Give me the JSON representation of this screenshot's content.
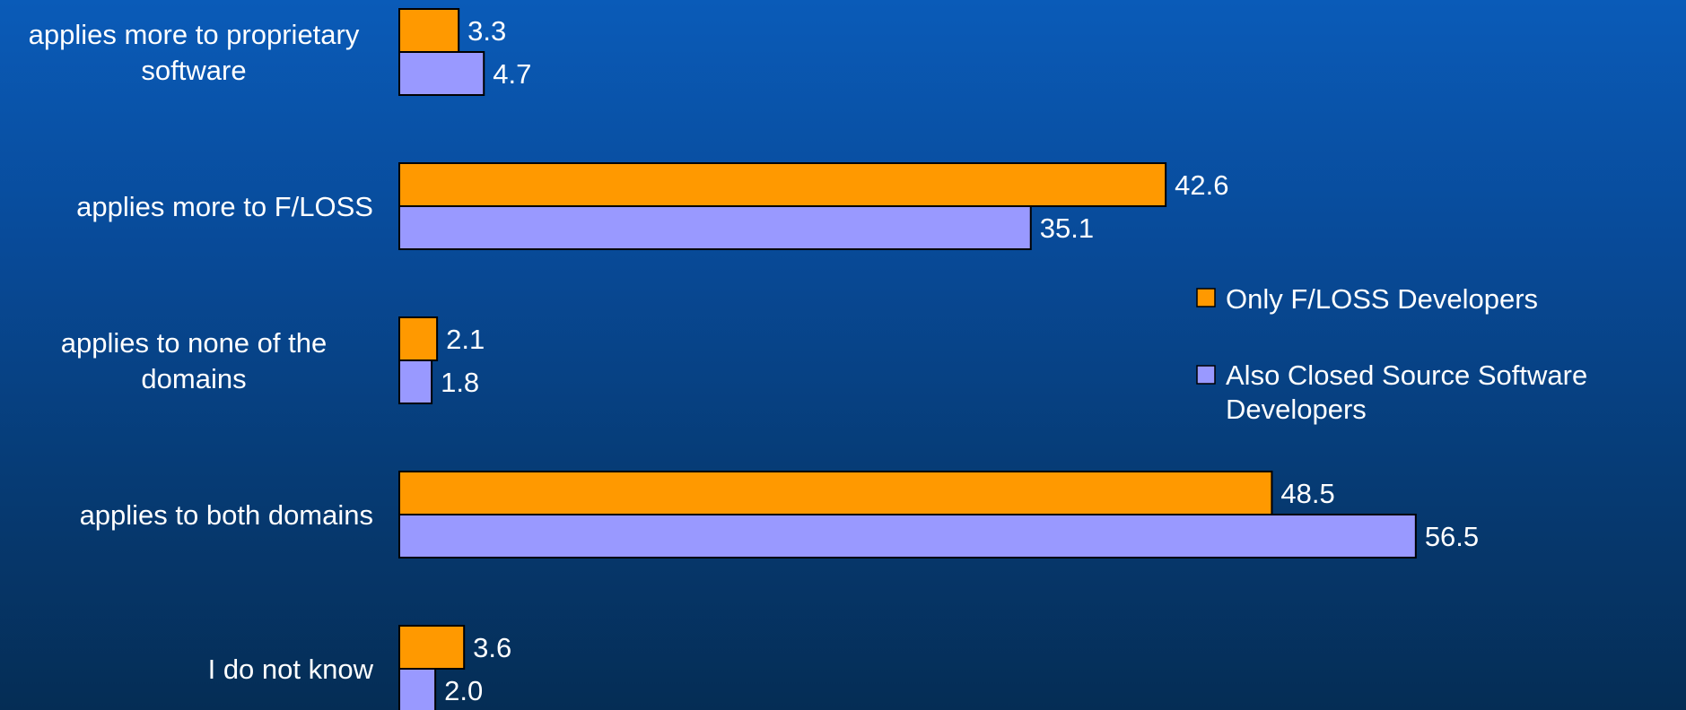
{
  "chart_data": {
    "type": "bar",
    "orientation": "horizontal",
    "categories": [
      [
        "applies more to proprietary",
        "software"
      ],
      [
        "applies more to F/LOSS"
      ],
      [
        "applies to none of the",
        "domains"
      ],
      [
        "applies to both domains"
      ],
      [
        "I do not know"
      ]
    ],
    "series": [
      {
        "name": "Only F/LOSS Developers",
        "color": "#ff9900",
        "values": [
          3.3,
          42.6,
          2.1,
          48.5,
          3.6
        ],
        "labels": [
          "3.3",
          "42.6",
          "2.1",
          "48.5",
          "3.6"
        ]
      },
      {
        "name_lines": [
          "Also Closed Source Software",
          "Developers"
        ],
        "color": "#9999ff",
        "values": [
          4.7,
          35.1,
          1.8,
          56.5,
          2.0
        ],
        "labels": [
          "4.7",
          "35.1",
          "1.8",
          "56.5",
          "2.0"
        ]
      }
    ],
    "xlim": [
      0,
      60
    ],
    "grid": false,
    "legend_position": "right"
  }
}
